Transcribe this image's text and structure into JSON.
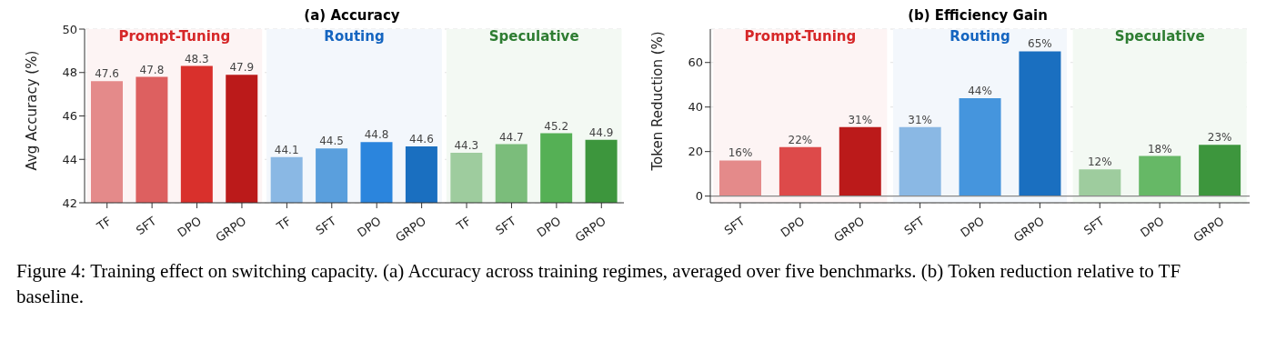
{
  "chart_data": [
    {
      "type": "bar",
      "title": "(a) Accuracy",
      "ylabel": "Avg Accuracy (%)",
      "categories": [
        "TF",
        "SFT",
        "DPO",
        "GRPO",
        "TF",
        "SFT",
        "DPO",
        "GRPO",
        "TF",
        "SFT",
        "DPO",
        "GRPO"
      ],
      "values": [
        47.6,
        47.8,
        48.3,
        47.9,
        44.1,
        44.5,
        44.8,
        44.6,
        44.3,
        44.7,
        45.2,
        44.9
      ],
      "colors": [
        "#e48a8a",
        "#dd6060",
        "#d9302c",
        "#bb1a1a",
        "#8ab8e4",
        "#5a9fdd",
        "#2b85dd",
        "#1a6fc0",
        "#9ecc9e",
        "#7bbd7b",
        "#55b055",
        "#3d963d"
      ],
      "data_labels": true,
      "ylim": [
        42,
        50
      ],
      "yticks": [
        42,
        44,
        46,
        48,
        50
      ],
      "grid": "y",
      "annotations": [
        "Prompt-Tuning",
        "Routing",
        "Speculative"
      ]
    },
    {
      "type": "bar",
      "title": "(b) Efficiency Gain",
      "ylabel": "Token Reduction (%)",
      "categories": [
        "SFT",
        "DPO",
        "GRPO",
        "SFT",
        "DPO",
        "GRPO",
        "SFT",
        "DPO",
        "GRPO"
      ],
      "values": [
        16,
        22,
        31,
        31,
        44,
        65,
        12,
        18,
        23
      ],
      "value_labels": [
        "16%",
        "22%",
        "31%",
        "31%",
        "44%",
        "65%",
        "12%",
        "18%",
        "23%"
      ],
      "colors": [
        "#e48a8a",
        "#dd4a4a",
        "#bb1a1a",
        "#8ab8e4",
        "#4595dd",
        "#1a6fc0",
        "#9ecc9e",
        "#66b866",
        "#3d963d"
      ],
      "ylim": [
        -3,
        75
      ],
      "yticks": [
        0,
        20,
        40,
        60
      ],
      "grid": "y",
      "ref_lines": [
        {
          "axis": "y",
          "value": 0,
          "color": "#888888"
        }
      ],
      "annotations": [
        "Prompt-Tuning",
        "Routing",
        "Speculative",
        "Figure 4: Training effect on switching capacity. (a) Accuracy across training regimes, averaged over five benchmarks. (b) Token reduction relative to TF baseline."
      ]
    }
  ]
}
